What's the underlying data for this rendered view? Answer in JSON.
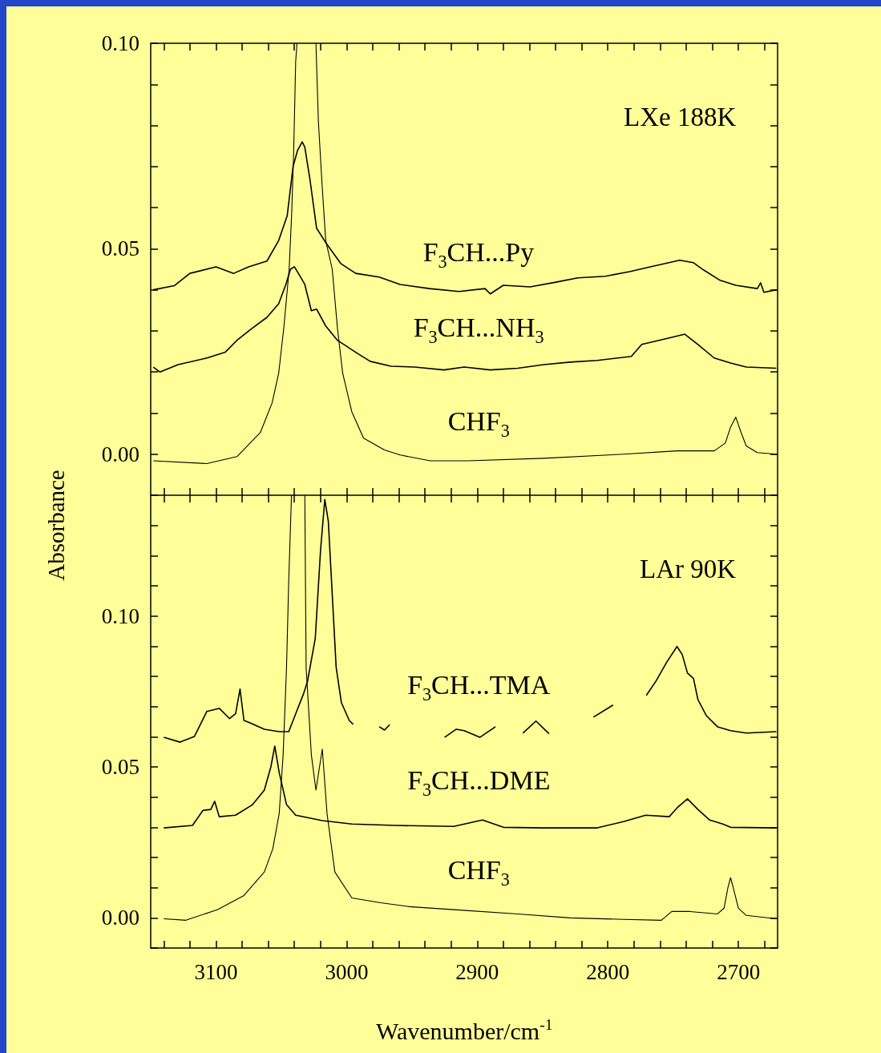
{
  "chart_data": [
    {
      "type": "line",
      "ylabel": "Absorbance",
      "annotations": [
        "LXe 188K"
      ],
      "marker": "none",
      "tick_labels": "y",
      "xlim": [
        3150,
        2670
      ],
      "ylim": [
        -0.01,
        0.1
      ],
      "xticks": [
        {
          "value": 3140,
          "label": null
        },
        {
          "value": 3120,
          "label": null
        },
        {
          "value": 3100,
          "label": null
        },
        {
          "value": 3080,
          "label": null
        },
        {
          "value": 3060,
          "label": null
        },
        {
          "value": 3040,
          "label": null
        },
        {
          "value": 3020,
          "label": null
        },
        {
          "value": 3000,
          "label": null
        },
        {
          "value": 2980,
          "label": null
        },
        {
          "value": 2960,
          "label": null
        },
        {
          "value": 2940,
          "label": null
        },
        {
          "value": 2920,
          "label": null
        },
        {
          "value": 2900,
          "label": null
        },
        {
          "value": 2880,
          "label": null
        },
        {
          "value": 2860,
          "label": null
        },
        {
          "value": 2840,
          "label": null
        },
        {
          "value": 2820,
          "label": null
        },
        {
          "value": 2800,
          "label": null
        },
        {
          "value": 2780,
          "label": null
        },
        {
          "value": 2760,
          "label": null
        },
        {
          "value": 2740,
          "label": null
        },
        {
          "value": 2720,
          "label": null
        },
        {
          "value": 2700,
          "label": null
        },
        {
          "value": 2680,
          "label": null
        }
      ],
      "yticks": [
        {
          "value": -0.01,
          "label": null
        },
        {
          "value": 0,
          "label": "0.00"
        },
        {
          "value": 0.01,
          "label": null
        },
        {
          "value": 0.02,
          "label": null
        },
        {
          "value": 0.03,
          "label": null
        },
        {
          "value": 0.04,
          "label": null
        },
        {
          "value": 0.05,
          "label": "0.05"
        },
        {
          "value": 0.06,
          "label": null
        },
        {
          "value": 0.07,
          "label": null
        },
        {
          "value": 0.08,
          "label": null
        },
        {
          "value": 0.09,
          "label": null
        },
        {
          "value": 0.1,
          "label": "0.10"
        }
      ],
      "series": [
        {
          "name": "F$_{3}$CH...Py",
          "color": "#000000",
          "x": [
            3148,
            3132,
            3120,
            3100,
            3086.5,
            3075,
            3061,
            3052,
            3045.5,
            3041,
            3037.5,
            3034,
            3032,
            3028,
            3023,
            3016,
            3004.5,
            2993,
            2975,
            2959,
            2936.5,
            2914,
            2894,
            2890,
            2880,
            2859.5,
            2839,
            2823,
            2802,
            2783.4,
            2767.5,
            2745,
            2734.4,
            2726.5,
            2714,
            2702,
            2685.5,
            2683,
            2680.5,
            2671
          ],
          "values": [
            0.04,
            0.041,
            0.044,
            0.0456,
            0.044,
            0.0456,
            0.047,
            0.052,
            0.058,
            0.07,
            0.074,
            0.076,
            0.0747,
            0.0667,
            0.055,
            0.0515,
            0.0464,
            0.044,
            0.0431,
            0.0413,
            0.0403,
            0.0396,
            0.0403,
            0.039,
            0.0411,
            0.0407,
            0.0419,
            0.0429,
            0.0433,
            0.0444,
            0.0456,
            0.0472,
            0.0466,
            0.0448,
            0.0423,
            0.0411,
            0.0403,
            0.0417,
            0.0394,
            0.04
          ]
        },
        {
          "name": "F$_{3}$CH...NH$_{3}$",
          "color": "#000000",
          "x": [
            3148,
            3143,
            3129,
            3107,
            3093,
            3084,
            3072.5,
            3061,
            3052,
            3046.5,
            3043,
            3040,
            3036,
            3032,
            3027,
            3023,
            3016,
            3007,
            2993,
            2982,
            2966,
            2948,
            2925.5,
            2910,
            2890,
            2869,
            2849,
            2829,
            2808,
            2782,
            2774,
            2757,
            2741,
            2731,
            2718.5,
            2706,
            2694,
            2671
          ],
          "values": [
            0.0212,
            0.02,
            0.0218,
            0.0234,
            0.0248,
            0.0277,
            0.0306,
            0.0333,
            0.0366,
            0.0413,
            0.045,
            0.0456,
            0.0435,
            0.0413,
            0.0349,
            0.0353,
            0.0312,
            0.0277,
            0.0248,
            0.0226,
            0.0214,
            0.0212,
            0.0205,
            0.0212,
            0.0205,
            0.0209,
            0.0218,
            0.0224,
            0.0228,
            0.0238,
            0.0267,
            0.028,
            0.0292,
            0.0267,
            0.0234,
            0.0222,
            0.0212,
            0.0209
          ]
        },
        {
          "name": "CHF$_{3}$",
          "color": "#000000",
          "x": [
            3148,
            3107,
            3084,
            3066,
            3057,
            3052,
            3048,
            3044,
            3042,
            3040.5,
            3039,
            3038,
            3030,
            3023.5,
            3021.6,
            3019,
            3016,
            3011,
            3007,
            3003,
            2996,
            2987,
            2971,
            2959,
            2936,
            2907,
            2849,
            2788,
            2747,
            2718.5,
            2710,
            2706,
            2702,
            2698,
            2694,
            2685.5,
            2671
          ],
          "values": [
            -0.0016,
            -0.0023,
            -0.0006,
            0.0053,
            0.0125,
            0.0197,
            0.031,
            0.045,
            0.059,
            0.074,
            0.0955,
            0.1,
            null,
            0.1,
            0.081,
            0.0667,
            0.052,
            0.045,
            0.0306,
            0.0197,
            0.0103,
            0.0039,
            0.001,
            -0.0002,
            -0.0016,
            -0.0016,
            -0.001,
            0,
            0.0008,
            0.0008,
            0.0027,
            0.0066,
            0.009,
            0.0053,
            0.002,
            0.0004,
            0
          ]
        }
      ]
    },
    {
      "type": "line",
      "xlabel": "Wavenumber/cm$^{-1}$",
      "annotations": [
        "LAr 90K"
      ],
      "marker": "none",
      "xlim": [
        3150,
        2670
      ],
      "ylim": [
        -0.01,
        0.14
      ],
      "xticks": [
        {
          "value": 3140,
          "label": null
        },
        {
          "value": 3120,
          "label": null
        },
        3100,
        {
          "value": 3080,
          "label": null
        },
        {
          "value": 3060,
          "label": null
        },
        {
          "value": 3040,
          "label": null
        },
        {
          "value": 3020,
          "label": null
        },
        3000,
        {
          "value": 2980,
          "label": null
        },
        {
          "value": 2960,
          "label": null
        },
        {
          "value": 2940,
          "label": null
        },
        {
          "value": 2920,
          "label": null
        },
        2900,
        {
          "value": 2880,
          "label": null
        },
        {
          "value": 2860,
          "label": null
        },
        {
          "value": 2840,
          "label": null
        },
        {
          "value": 2820,
          "label": null
        },
        2800,
        {
          "value": 2780,
          "label": null
        },
        {
          "value": 2760,
          "label": null
        },
        {
          "value": 2740,
          "label": null
        },
        {
          "value": 2720,
          "label": null
        },
        2700,
        {
          "value": 2680,
          "label": null
        }
      ],
      "yticks": [
        {
          "value": -0.01,
          "label": null
        },
        {
          "value": 0,
          "label": "0.00"
        },
        {
          "value": 0.01,
          "label": null
        },
        {
          "value": 0.02,
          "label": null
        },
        {
          "value": 0.03,
          "label": null
        },
        {
          "value": 0.04,
          "label": null
        },
        {
          "value": 0.05,
          "label": "0.05"
        },
        {
          "value": 0.06,
          "label": null
        },
        {
          "value": 0.07,
          "label": null
        },
        {
          "value": 0.08,
          "label": null
        },
        {
          "value": 0.09,
          "label": null
        },
        {
          "value": 0.1,
          "label": "0.10"
        },
        {
          "value": 0.11,
          "label": null
        },
        {
          "value": 0.12,
          "label": null
        },
        {
          "value": 0.13,
          "label": null
        },
        {
          "value": 0.14,
          "label": null
        }
      ],
      "series": [
        {
          "name": "F$_{3}$CH...TMA",
          "color": "#000000",
          "x": [
            3140,
            3127.5,
            3116.5,
            3107,
            3097.5,
            3089.6,
            3085,
            3081.6,
            3078.6,
            3074,
            3063,
            3051.6,
            3044.3,
            3039,
            3033,
            3030,
            3024,
            3020,
            3016.7,
            3014,
            3008,
            3004,
            2998,
            2995
          ],
          "values": [
            0.0598,
            0.0582,
            0.0601,
            0.0684,
            0.0694,
            0.066,
            0.0676,
            0.0758,
            0.0654,
            0.0646,
            0.0625,
            0.0617,
            0.0617,
            0.0676,
            0.0742,
            0.0782,
            0.0926,
            0.1215,
            0.1386,
            0.1314,
            0.083,
            0.0713,
            0.0654,
            0.0641
          ]
        },
        {
          "color": "#000000",
          "x": [
            2975,
            2971,
            2967
          ],
          "values": [
            0.0633,
            0.0622,
            0.064
          ]
        },
        {
          "color": "#000000",
          "x": [
            2925,
            2916,
            2910,
            2898,
            2886
          ],
          "values": [
            0.0598,
            0.0625,
            0.062,
            0.0598,
            0.0633
          ]
        },
        {
          "color": "#000000",
          "x": [
            2865,
            2855,
            2845
          ],
          "values": [
            0.0612,
            0.0652,
            0.061
          ]
        },
        {
          "color": "#000000",
          "x": [
            2811,
            2796
          ],
          "values": [
            0.0665,
            0.0705
          ]
        },
        {
          "color": "#000000",
          "x": [
            2770.5,
            2763,
            2755,
            2747,
            2743,
            2739,
            2734.4,
            2731,
            2724.6,
            2716,
            2706,
            2694,
            2671
          ],
          "values": [
            0.0737,
            0.0785,
            0.0846,
            0.0899,
            0.0872,
            0.0811,
            0.0793,
            0.0723,
            0.067,
            0.0633,
            0.062,
            0.0612,
            0.0617
          ]
        },
        {
          "name": "F$_{3}$CH...DME",
          "color": "#000000",
          "x": [
            3140,
            3118,
            3110,
            3104,
            3101,
            3097.5,
            3085,
            3072,
            3063,
            3058,
            3055,
            3051.6,
            3046,
            3039,
            3018.6,
            2996,
            2963,
            2918,
            2896,
            2880,
            2849,
            2808,
            2788,
            2771,
            2753,
            2747,
            2739,
            2731,
            2722,
            2712,
            2706,
            2671
          ],
          "values": [
            0.0298,
            0.0306,
            0.0356,
            0.0359,
            0.0386,
            0.0335,
            0.034,
            0.0375,
            0.0423,
            0.05,
            0.0569,
            0.0481,
            0.0375,
            0.034,
            0.0322,
            0.0311,
            0.0306,
            0.0303,
            0.0324,
            0.03,
            0.0298,
            0.0298,
            0.0319,
            0.034,
            0.0335,
            0.0364,
            0.0394,
            0.0359,
            0.0324,
            0.0311,
            0.03,
            0.0298
          ]
        },
        {
          "name": "CHF$_{3}$",
          "color": "#000000",
          "x": [
            3140,
            3123,
            3099,
            3078.6,
            3063,
            3056.5,
            3051.6,
            3048.6,
            3046,
            3044.3,
            3042.2,
            3037,
            3032,
            3031,
            3027,
            3023.5,
            3018.6,
            3015,
            3009,
            2996,
            2974,
            2952,
            2918,
            2869,
            2829,
            2788,
            2759,
            2751,
            2737,
            2716,
            2711,
            2708,
            2706,
            2704,
            2700,
            2694,
            2671
          ],
          "values": [
            -0.0003,
            -0.0008,
            0.0027,
            0.0074,
            0.0152,
            0.0229,
            0.0346,
            0.054,
            0.083,
            0.112,
            0.14,
            null,
            0.14,
            0.083,
            0.054,
            0.0423,
            0.0559,
            0.0346,
            0.0152,
            0.0066,
            0.005,
            0.0037,
            0.0027,
            0.0013,
            0,
            -0.0005,
            -0.0008,
            0.0021,
            0.0021,
            0.0013,
            0.0032,
            0.0101,
            0.0133,
            0.0101,
            0.0032,
            0.0008,
            -0.0003
          ]
        }
      ]
    }
  ]
}
